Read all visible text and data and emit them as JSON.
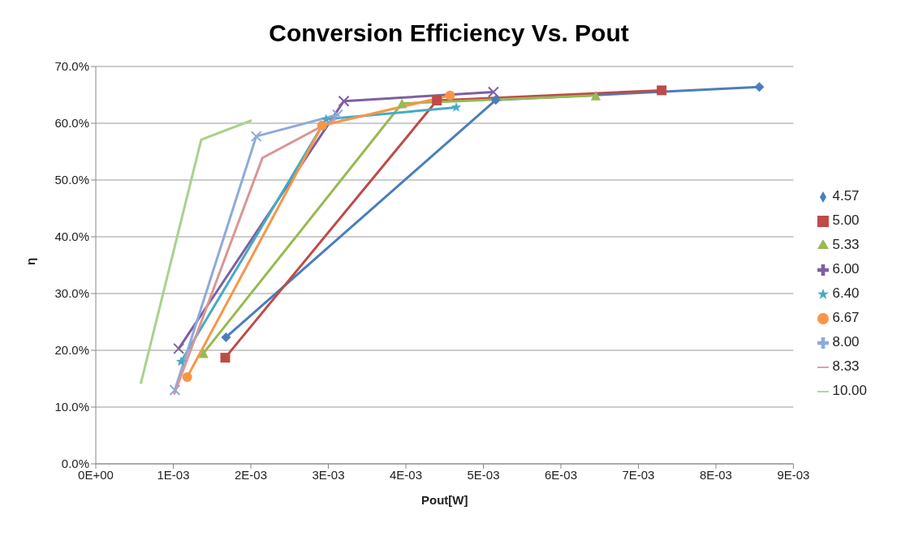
{
  "chart_data": {
    "type": "line",
    "title": "Conversion Efficiency Vs. Pout",
    "xlabel": "Pout[W]",
    "ylabel": "η",
    "xlim": [
      0,
      0.009
    ],
    "xticks": [
      {
        "value": 0,
        "label": "0E+00"
      },
      {
        "value": 0.001,
        "label": "1E-03"
      },
      {
        "value": 0.002,
        "label": "2E-03"
      },
      {
        "value": 0.003,
        "label": "3E-03"
      },
      {
        "value": 0.004,
        "label": "4E-03"
      },
      {
        "value": 0.005,
        "label": "5E-03"
      },
      {
        "value": 0.006,
        "label": "6E-03"
      },
      {
        "value": 0.007,
        "label": "7E-03"
      },
      {
        "value": 0.008,
        "label": "8E-03"
      },
      {
        "value": 0.009,
        "label": "9E-03"
      }
    ],
    "ylim": [
      0,
      70
    ],
    "yticks": [
      {
        "value": 0,
        "label": "0.0%"
      },
      {
        "value": 10,
        "label": "10.0%"
      },
      {
        "value": 20,
        "label": "20.0%"
      },
      {
        "value": 30,
        "label": "30.0%"
      },
      {
        "value": 40,
        "label": "40.0%"
      },
      {
        "value": 50,
        "label": "50.0%"
      },
      {
        "value": 60,
        "label": "60.0%"
      },
      {
        "value": 70,
        "label": "70.0%"
      }
    ],
    "grid": "y",
    "legend": "right",
    "line_style": "solid",
    "series": [
      {
        "name": "4.57",
        "color": "#4a7ebb",
        "marker": "diamond",
        "x": [
          0.00168,
          0.00516,
          0.00856
        ],
        "values": [
          22.3,
          64.1,
          66.4
        ]
      },
      {
        "name": "5.00",
        "color": "#be4b48",
        "marker": "square",
        "x": [
          0.00167,
          0.0044,
          0.0073
        ],
        "values": [
          18.7,
          64,
          65.8
        ]
      },
      {
        "name": "5.33",
        "color": "#98b954",
        "marker": "triangle",
        "x": [
          0.00139,
          0.00395,
          0.00645
        ],
        "values": [
          19.5,
          63.5,
          64.9
        ]
      },
      {
        "name": "6.00",
        "color": "#7d60a0",
        "marker": "cross",
        "x": [
          0.00107,
          0.0032,
          0.00513
        ],
        "values": [
          20.3,
          63.9,
          65.5
        ]
      },
      {
        "name": "6.40",
        "color": "#46aac5",
        "marker": "star",
        "x": [
          0.0011,
          0.00297,
          0.00465
        ],
        "values": [
          18,
          60.7,
          62.8
        ]
      },
      {
        "name": "6.67",
        "color": "#f79646",
        "marker": "circle",
        "x": [
          0.00118,
          0.00292,
          0.00457
        ],
        "values": [
          15.3,
          59.6,
          64.9
        ]
      },
      {
        "name": "8.00",
        "color": "#8eaadb",
        "marker": "cross",
        "x": [
          0.00102,
          0.00207,
          0.00312
        ],
        "values": [
          13,
          57.7,
          61.5
        ]
      },
      {
        "name": "8.33",
        "color": "#d99694",
        "marker": "none",
        "x": [
          0.00101,
          0.00215,
          0.0031
        ],
        "values": [
          12.2,
          53.9,
          60.8
        ]
      },
      {
        "name": "10.00",
        "color": "#a9d18e",
        "marker": "none",
        "x": [
          0.00058,
          0.00136,
          0.00201
        ],
        "values": [
          14.1,
          57.1,
          60.5
        ]
      }
    ]
  }
}
